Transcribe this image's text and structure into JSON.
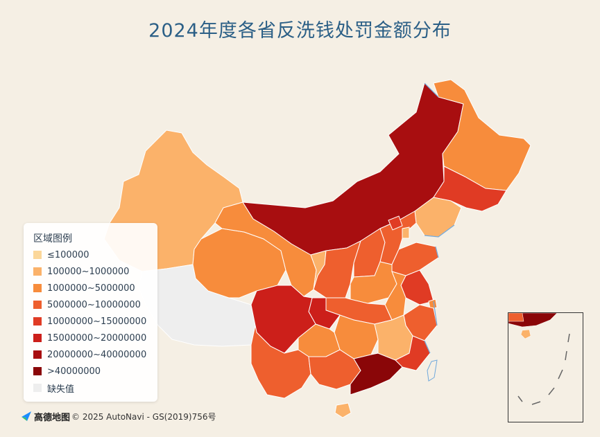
{
  "title": "2024年度各省反洗钱处罚金额分布",
  "legend": {
    "title": "区域图例",
    "items": [
      {
        "label": "≤100000",
        "color": "#fbd79a"
      },
      {
        "label": "100000~1000000",
        "color": "#fbb26a"
      },
      {
        "label": "1000000~5000000",
        "color": "#f78c3c"
      },
      {
        "label": "5000000~10000000",
        "color": "#ee5f2e"
      },
      {
        "label": "10000000~15000000",
        "color": "#e03b24"
      },
      {
        "label": "15000000~20000000",
        "color": "#cc1f1a"
      },
      {
        "label": "20000000~40000000",
        "color": "#a80e10"
      },
      {
        "label": ">40000000",
        "color": "#8a0608"
      },
      {
        "label": "缺失值",
        "color": "#eeeeee"
      }
    ]
  },
  "attribution": {
    "brand": "高德地图",
    "text": "© 2025 AutoNavi - GS(2019)756号"
  },
  "colors": {
    "background": "#f5efe4",
    "sea": "#6fa8dc",
    "border": "#ffffff"
  }
}
